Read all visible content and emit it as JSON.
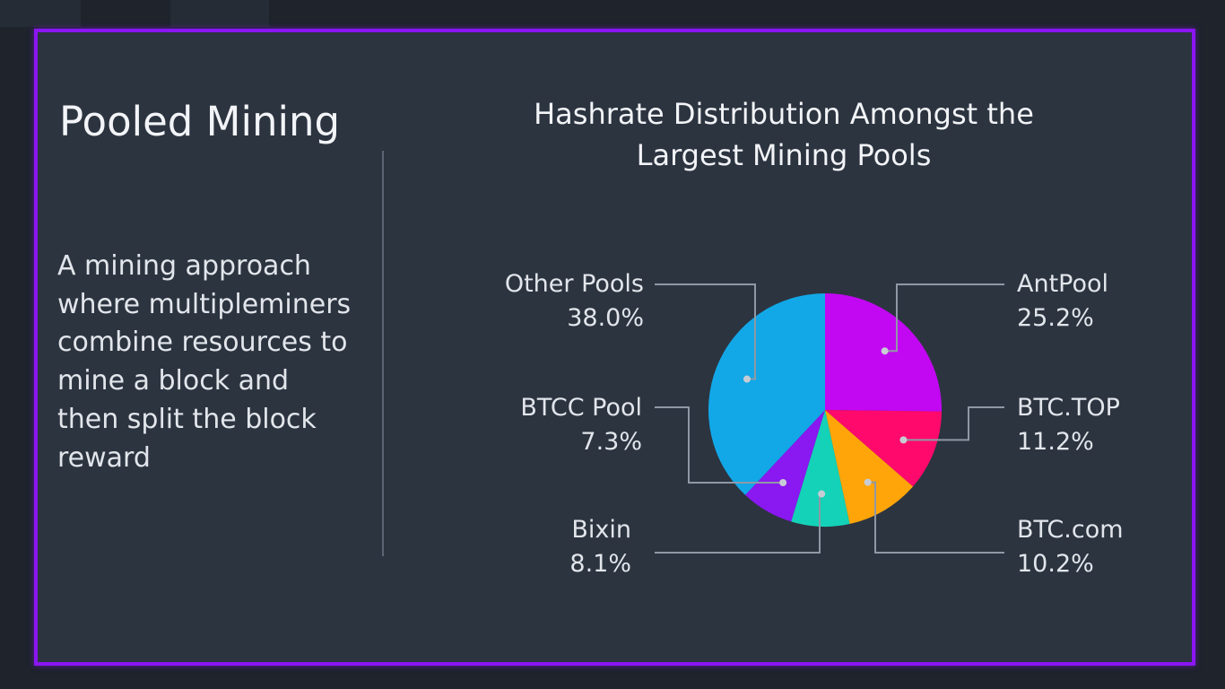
{
  "slide": {
    "title": "Pooled Mining",
    "description": "A mining approach where multipleminers combine resources to mine a block and then split the block reward",
    "border_color": "#8a16f2"
  },
  "chart_data": {
    "type": "pie",
    "title": "Hashrate Distribution Amongst the Largest Mining Pools",
    "slices": [
      {
        "label": "AntPool",
        "value": 25.2,
        "value_label": "25.2%",
        "color": "#c208f2"
      },
      {
        "label": "BTC.TOP",
        "value": 11.2,
        "value_label": "11.2%",
        "color": "#ff0a6c"
      },
      {
        "label": "BTC.com",
        "value": 10.2,
        "value_label": "10.2%",
        "color": "#ffa50a"
      },
      {
        "label": "Bixin",
        "value": 8.1,
        "value_label": "8.1%",
        "color": "#14d2b8"
      },
      {
        "label": "BTCC Pool",
        "value": 7.3,
        "value_label": "7.3%",
        "color": "#8a18f0"
      },
      {
        "label": "Other Pools",
        "value": 38.0,
        "value_label": "38.0%",
        "color": "#12a8e8"
      }
    ]
  }
}
